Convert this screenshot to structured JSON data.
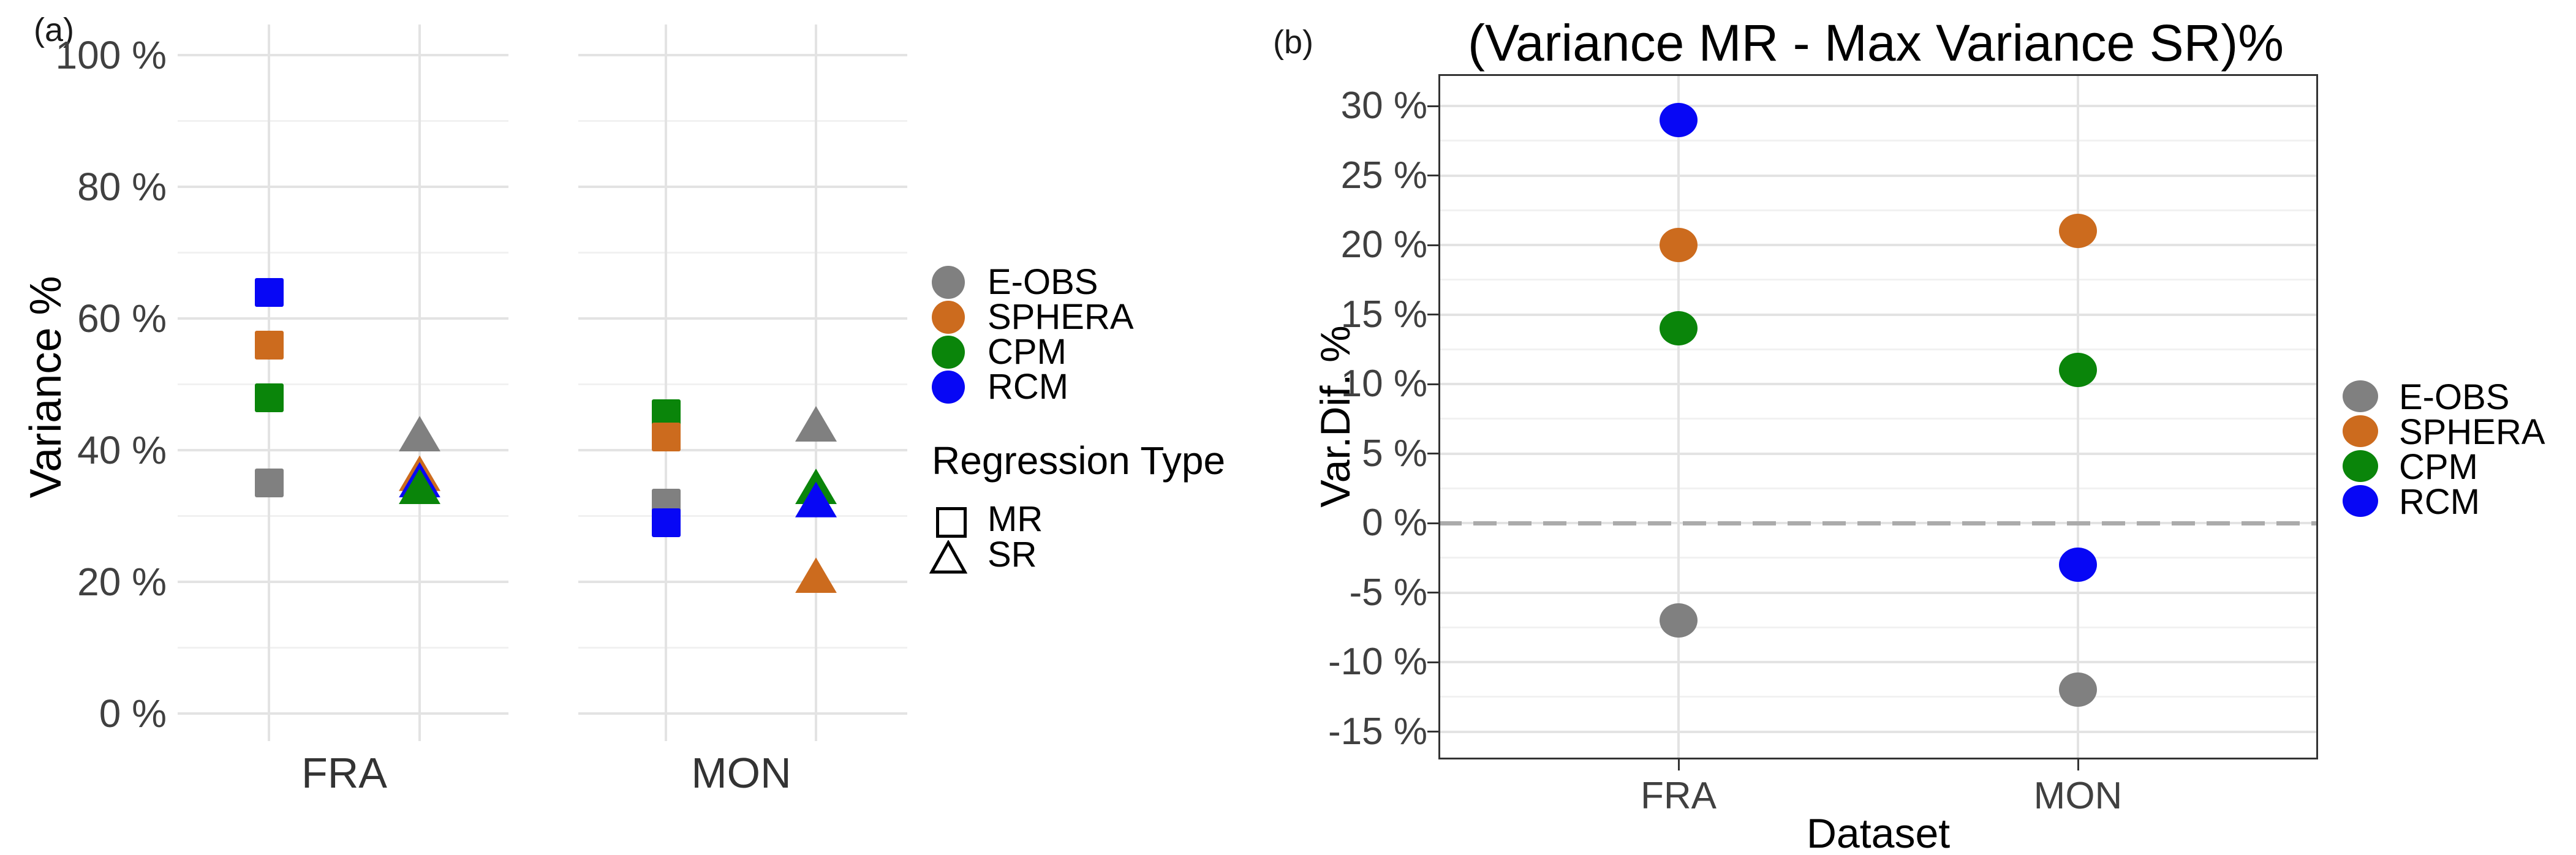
{
  "figure": {
    "background": "#FFFFFF"
  },
  "colors": {
    "eobs": "#808080",
    "sphera": "#CC6B1E",
    "cpm": "#0A850A",
    "rcm": "#0707F5",
    "grid_major": "#E3E3E3",
    "grid_minor": "#F1F1F1",
    "axis_text": "#404040",
    "black_text": "#000000",
    "panel_border": "#333333",
    "zero_line": "#ABABAB"
  },
  "chart_data": [
    {
      "id": "a",
      "type": "scatter",
      "panel_label": "(a)",
      "title": "",
      "ylabel": "Variance %",
      "xlabel": "",
      "ylim": [
        0,
        105
      ],
      "grid": "on",
      "legend_position": "right",
      "y_ticks": [
        {
          "value": 100,
          "label": "100 %"
        },
        {
          "value": 80,
          "label": "80 %"
        },
        {
          "value": 60,
          "label": "60 %"
        },
        {
          "value": 40,
          "label": "40 %"
        },
        {
          "value": 20,
          "label": "20 %"
        },
        {
          "value": 0,
          "label": "0 %"
        }
      ],
      "y_minor_ticks": [
        90,
        70,
        50,
        30,
        10
      ],
      "facets": [
        "FRA",
        "MON"
      ],
      "x_positions": [
        "MR",
        "SR"
      ],
      "series": [
        {
          "name": "E-OBS",
          "color_key": "eobs"
        },
        {
          "name": "SPHERA",
          "color_key": "sphera"
        },
        {
          "name": "CPM",
          "color_key": "cpm"
        },
        {
          "name": "RCM",
          "color_key": "rcm"
        }
      ],
      "shape_legend_title": "Regression Type",
      "shapes": [
        {
          "name": "MR",
          "glyph": "square"
        },
        {
          "name": "SR",
          "glyph": "triangle"
        }
      ],
      "points": [
        {
          "facet": "FRA",
          "shape": "MR",
          "series": "RCM",
          "value": 64
        },
        {
          "facet": "FRA",
          "shape": "MR",
          "series": "SPHERA",
          "value": 56
        },
        {
          "facet": "FRA",
          "shape": "MR",
          "series": "CPM",
          "value": 48
        },
        {
          "facet": "FRA",
          "shape": "MR",
          "series": "E-OBS",
          "value": 35
        },
        {
          "facet": "FRA",
          "shape": "SR",
          "series": "E-OBS",
          "value": 42.5
        },
        {
          "facet": "FRA",
          "shape": "SR",
          "series": "SPHERA",
          "value": 36.5
        },
        {
          "facet": "FRA",
          "shape": "SR",
          "series": "RCM",
          "value": 35.5
        },
        {
          "facet": "FRA",
          "shape": "SR",
          "series": "CPM",
          "value": 34.5
        },
        {
          "facet": "MON",
          "shape": "MR",
          "series": "CPM",
          "value": 45.5
        },
        {
          "facet": "MON",
          "shape": "MR",
          "series": "SPHERA",
          "value": 42
        },
        {
          "facet": "MON",
          "shape": "MR",
          "series": "E-OBS",
          "value": 32
        },
        {
          "facet": "MON",
          "shape": "MR",
          "series": "RCM",
          "value": 29
        },
        {
          "facet": "MON",
          "shape": "SR",
          "series": "E-OBS",
          "value": 44
        },
        {
          "facet": "MON",
          "shape": "SR",
          "series": "CPM",
          "value": 34.5
        },
        {
          "facet": "MON",
          "shape": "SR",
          "series": "RCM",
          "value": 32.5
        },
        {
          "facet": "MON",
          "shape": "SR",
          "series": "SPHERA",
          "value": 21
        }
      ]
    },
    {
      "id": "b",
      "type": "scatter",
      "panel_label": "(b)",
      "title": "(Variance MR - Max Variance SR)%",
      "ylabel": "Var.Dif. %",
      "xlabel": "Dataset",
      "ylim": [
        -17.5,
        32.5
      ],
      "grid": "on",
      "legend_position": "right",
      "y_ticks": [
        {
          "value": 30,
          "label": "30 %"
        },
        {
          "value": 25,
          "label": "25 %"
        },
        {
          "value": 20,
          "label": "20 %"
        },
        {
          "value": 15,
          "label": "15 %"
        },
        {
          "value": 10,
          "label": "10 %"
        },
        {
          "value": 5,
          "label": "5 %"
        },
        {
          "value": 0,
          "label": "0 %"
        },
        {
          "value": -5,
          "label": "-5 %"
        },
        {
          "value": -10,
          "label": "-10 %"
        },
        {
          "value": -15,
          "label": "-15 %"
        }
      ],
      "y_minor_ticks": [
        27.5,
        22.5,
        17.5,
        12.5,
        7.5,
        2.5,
        -2.5,
        -7.5,
        -12.5
      ],
      "categories": [
        "FRA",
        "MON"
      ],
      "zero_line": {
        "value": 0,
        "style": "dashed"
      },
      "series": [
        {
          "name": "E-OBS",
          "color_key": "eobs"
        },
        {
          "name": "SPHERA",
          "color_key": "sphera"
        },
        {
          "name": "CPM",
          "color_key": "cpm"
        },
        {
          "name": "RCM",
          "color_key": "rcm"
        }
      ],
      "points": [
        {
          "category": "FRA",
          "series": "RCM",
          "value": 29
        },
        {
          "category": "FRA",
          "series": "SPHERA",
          "value": 20
        },
        {
          "category": "FRA",
          "series": "CPM",
          "value": 14
        },
        {
          "category": "FRA",
          "series": "E-OBS",
          "value": -7
        },
        {
          "category": "MON",
          "series": "SPHERA",
          "value": 21
        },
        {
          "category": "MON",
          "series": "CPM",
          "value": 11
        },
        {
          "category": "MON",
          "series": "RCM",
          "value": -3
        },
        {
          "category": "MON",
          "series": "E-OBS",
          "value": -12
        }
      ]
    }
  ]
}
